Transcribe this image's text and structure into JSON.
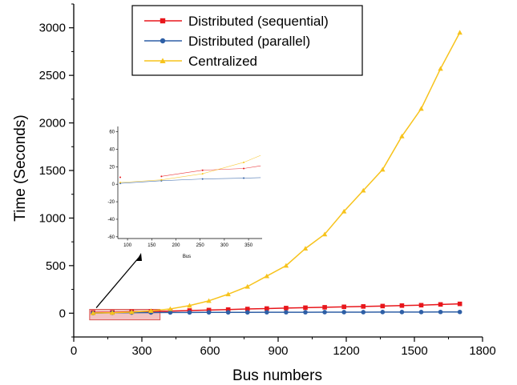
{
  "chart_data": [
    {
      "type": "line",
      "xlabel": "Bus numbers",
      "ylabel": "Time (Seconds)",
      "xlim": [
        0,
        1800
      ],
      "ylim": [
        -250,
        3250
      ],
      "x_ticks": [
        0,
        300,
        600,
        900,
        1200,
        1500,
        1800
      ],
      "x_tick_labels": [
        "0",
        "300",
        "600",
        "900",
        "1200",
        "1500",
        "1800"
      ],
      "y_ticks": [
        0,
        500,
        1000,
        1500,
        2000,
        2500,
        3000
      ],
      "y_tick_labels": [
        "0",
        "500",
        "1000",
        "1500",
        "2000",
        "2500",
        "3000"
      ],
      "grid": false,
      "legend_position": "top-center",
      "x": [
        85,
        170,
        255,
        340,
        425,
        510,
        595,
        680,
        765,
        850,
        935,
        1020,
        1105,
        1190,
        1275,
        1360,
        1445,
        1530,
        1615,
        1700
      ],
      "series": [
        {
          "name": "Distributed (sequential)",
          "color": "#e8161b",
          "marker": "square",
          "values": [
            8,
            9,
            16,
            18,
            22,
            28,
            33,
            38,
            44,
            49,
            54,
            58,
            62,
            67,
            71,
            75,
            80,
            84,
            92,
            98
          ]
        },
        {
          "name": "Distributed (parallel)",
          "color": "#2e5fa6",
          "marker": "circle",
          "values": [
            1,
            4,
            6,
            7,
            8,
            8,
            9,
            9,
            9,
            10,
            10,
            10,
            11,
            11,
            11,
            12,
            12,
            12,
            13,
            13
          ]
        },
        {
          "name": "Centralized",
          "color": "#f7c31c",
          "marker": "triangle",
          "values": [
            2,
            5,
            12,
            25,
            45,
            80,
            130,
            200,
            280,
            390,
            500,
            680,
            830,
            1070,
            1290,
            1510,
            1860,
            2150,
            2570,
            2950
          ]
        }
      ],
      "annotations": [
        {
          "type": "highlight-box",
          "x_range": [
            70,
            380
          ],
          "y_range": [
            -70,
            40
          ],
          "fill": "#f2c2c2",
          "stroke": "#d9534f"
        },
        {
          "type": "arrow",
          "from_box_to_inset": true
        }
      ]
    },
    {
      "type": "line",
      "role": "inset-zoom",
      "xlabel": "Bus",
      "xlim": [
        80,
        378
      ],
      "ylim": [
        -62,
        66
      ],
      "x_ticks": [
        100,
        150,
        200,
        250,
        300,
        350
      ],
      "x_tick_labels": [
        "100",
        "150",
        "200",
        "250",
        "300",
        "350"
      ],
      "y_ticks": [
        -60,
        -40,
        -20,
        0,
        20,
        40,
        60
      ],
      "y_tick_labels": [
        "-60",
        "-40",
        "-20",
        "0",
        "20",
        "40",
        "60"
      ],
      "x": [
        85,
        170,
        255,
        340
      ],
      "series": [
        {
          "color": "#e8161b",
          "values": [
            8,
            9,
            16,
            18
          ],
          "extend_to": 375,
          "extend_value": 21
        },
        {
          "color": "#2e5fa6",
          "values": [
            1,
            4,
            6,
            7
          ],
          "extend_to": 375,
          "extend_value": 7.5
        },
        {
          "color": "#f7c31c",
          "values": [
            2,
            5,
            12,
            25
          ],
          "extend_to": 375,
          "extend_value": 33
        }
      ]
    }
  ]
}
